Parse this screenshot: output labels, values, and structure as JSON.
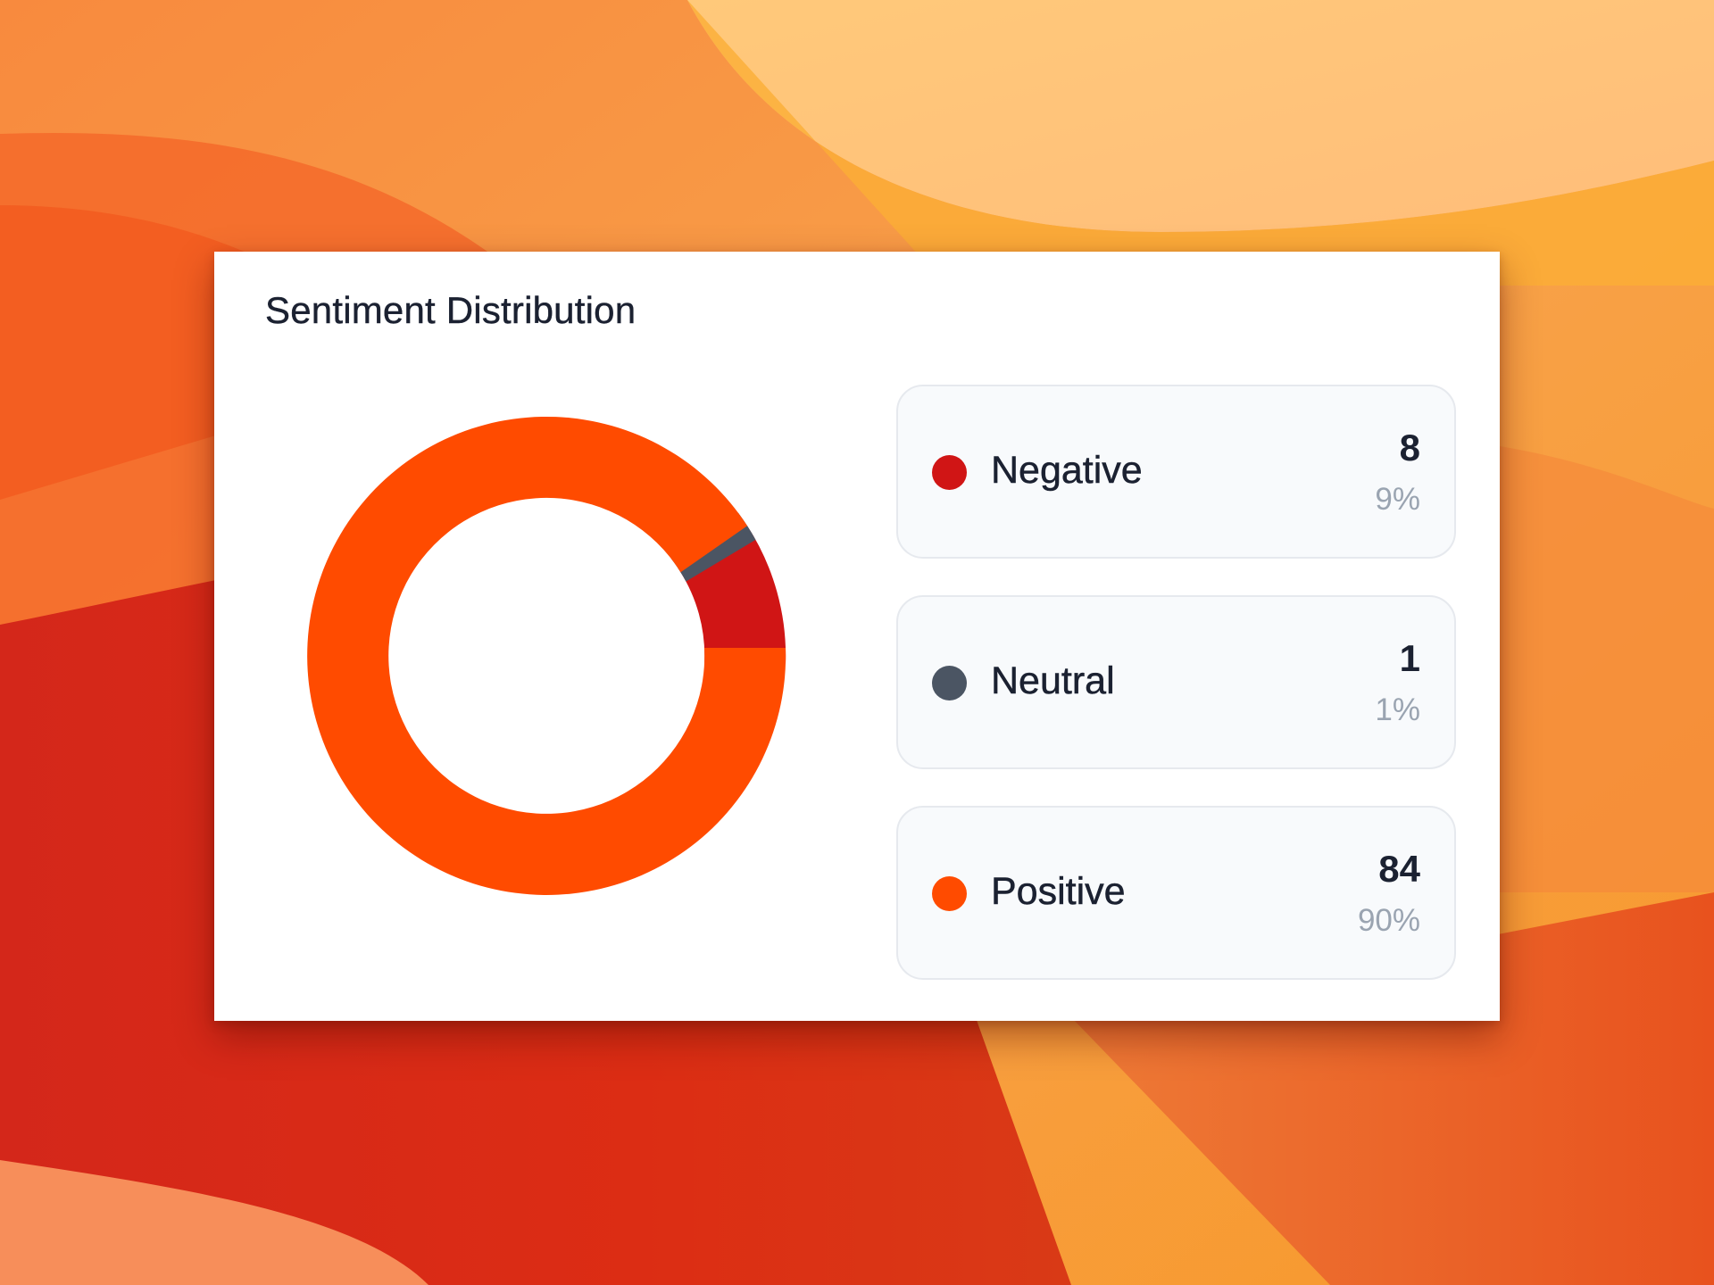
{
  "card": {
    "title": "Sentiment Distribution"
  },
  "legend": [
    {
      "label": "Negative",
      "count": "8",
      "percent": "9%",
      "color": "#d01515",
      "icon": "dot-icon"
    },
    {
      "label": "Neutral",
      "count": "1",
      "percent": "1%",
      "color": "#4b5563",
      "icon": "dot-icon"
    },
    {
      "label": "Positive",
      "count": "84",
      "percent": "90%",
      "color": "#ff4b00",
      "icon": "dot-icon"
    }
  ],
  "colors": {
    "negative": "#d01515",
    "neutral": "#4b5563",
    "positive": "#ff4b00",
    "card_background": "#ffffff",
    "legend_background": "#f8fafc",
    "text_primary": "#1b2131",
    "text_secondary": "#9aa4b1"
  },
  "chart_data": {
    "type": "pie",
    "variant": "donut",
    "title": "Sentiment Distribution",
    "categories": [
      "Negative",
      "Neutral",
      "Positive"
    ],
    "values": [
      8,
      1,
      84
    ],
    "percentages": [
      9,
      1,
      90
    ],
    "colors": [
      "#d01515",
      "#4b5563",
      "#ff4b00"
    ],
    "start_angle": "3 o'clock, counterclockwise",
    "legend_position": "right"
  }
}
